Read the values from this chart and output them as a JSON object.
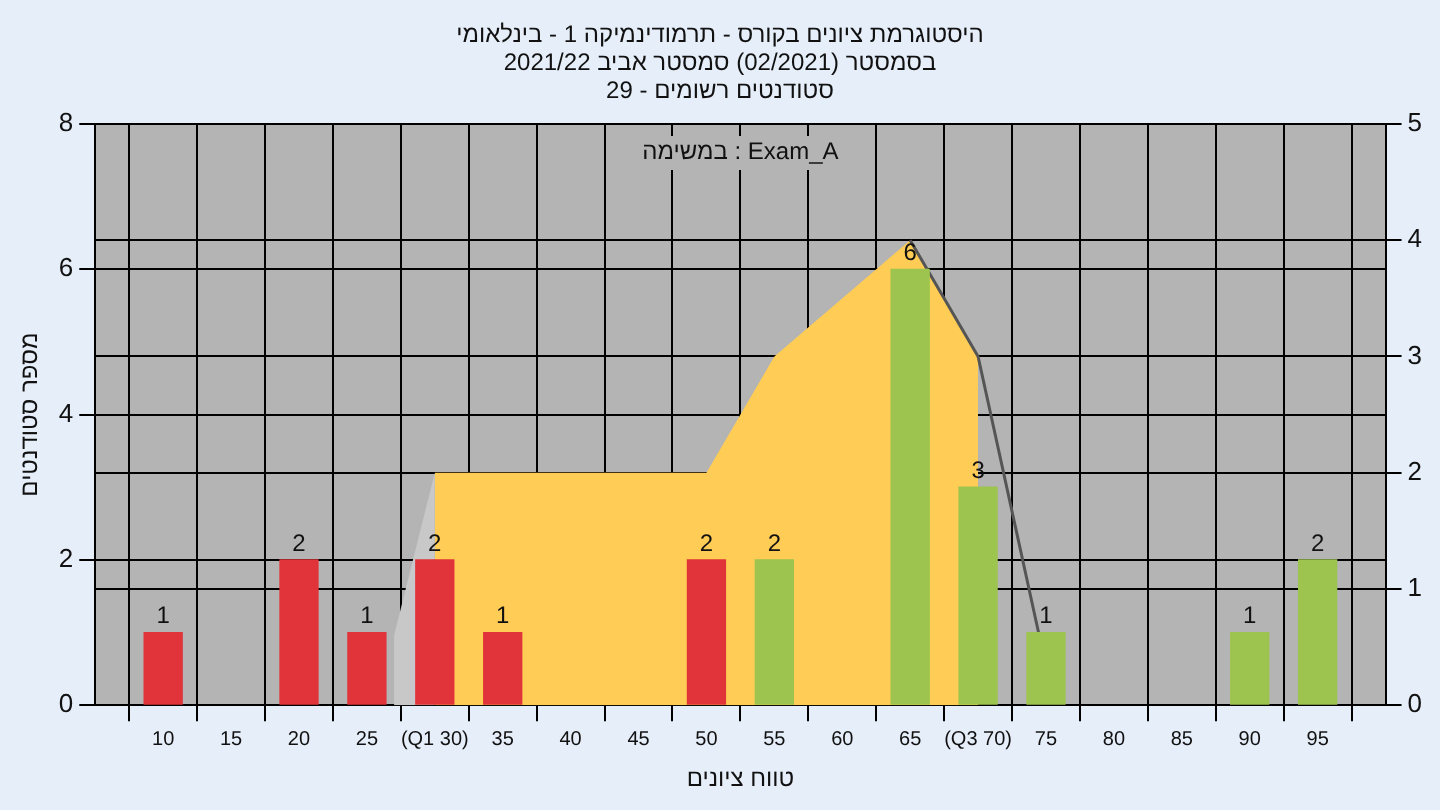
{
  "chart_data": {
    "type": "bar",
    "title": "היסטוגרמת ציונים בקורס - תרמודינמיקה 1 - בינלאומי",
    "subtitle": "בסמסטר (02/2021) סמסטר אביב 2021/22\nסטודנטים רשומים - 29",
    "xlabel": "טווח ציונים",
    "ylabel": "מספר סטודנטים",
    "annotations": [
      "במשימה : Exam_A"
    ],
    "xlim": [
      5,
      100
    ],
    "xticks": [
      10,
      15,
      20,
      25,
      {
        "value": 30,
        "label": "(Q1 30)"
      },
      35,
      40,
      45,
      50,
      55,
      60,
      65,
      {
        "value": 70,
        "label": "(Q3 70)"
      },
      75,
      80,
      85,
      90,
      95
    ],
    "ylim": [
      0,
      8
    ],
    "yticks": [
      0,
      2,
      4,
      6,
      8
    ],
    "y2lim": [
      0,
      5
    ],
    "y2ticks": [
      0,
      1,
      2,
      3,
      4,
      5
    ],
    "grid": true,
    "legend": false,
    "series": [
      {
        "type": "area",
        "axis": "y2",
        "color": "#c8c8c8",
        "x": [
          27,
          30
        ],
        "values": [
          0.6,
          2
        ]
      },
      {
        "type": "area",
        "axis": "y2",
        "color": "#ffcc55",
        "x": [
          30,
          50,
          55,
          65,
          70
        ],
        "values": [
          2,
          2,
          3,
          4,
          3
        ]
      },
      {
        "type": "line",
        "axis": "y2",
        "color": "#555555",
        "x": [
          65,
          70,
          74.5
        ],
        "values": [
          4,
          3,
          0.6
        ]
      },
      {
        "type": "bar",
        "data_labels": true,
        "x": [
          10,
          20,
          25,
          30,
          35,
          50,
          55,
          65,
          70,
          75,
          90,
          95
        ],
        "values": [
          1,
          2,
          1,
          2,
          1,
          2,
          2,
          6,
          3,
          1,
          1,
          2
        ],
        "colors": [
          "#e0343a",
          "#e0343a",
          "#e0343a",
          "#e0343a",
          "#e0343a",
          "#e0343a",
          "#9cc44e",
          "#9cc44e",
          "#9cc44e",
          "#9cc44e",
          "#9cc44e",
          "#9cc44e"
        ]
      }
    ]
  }
}
